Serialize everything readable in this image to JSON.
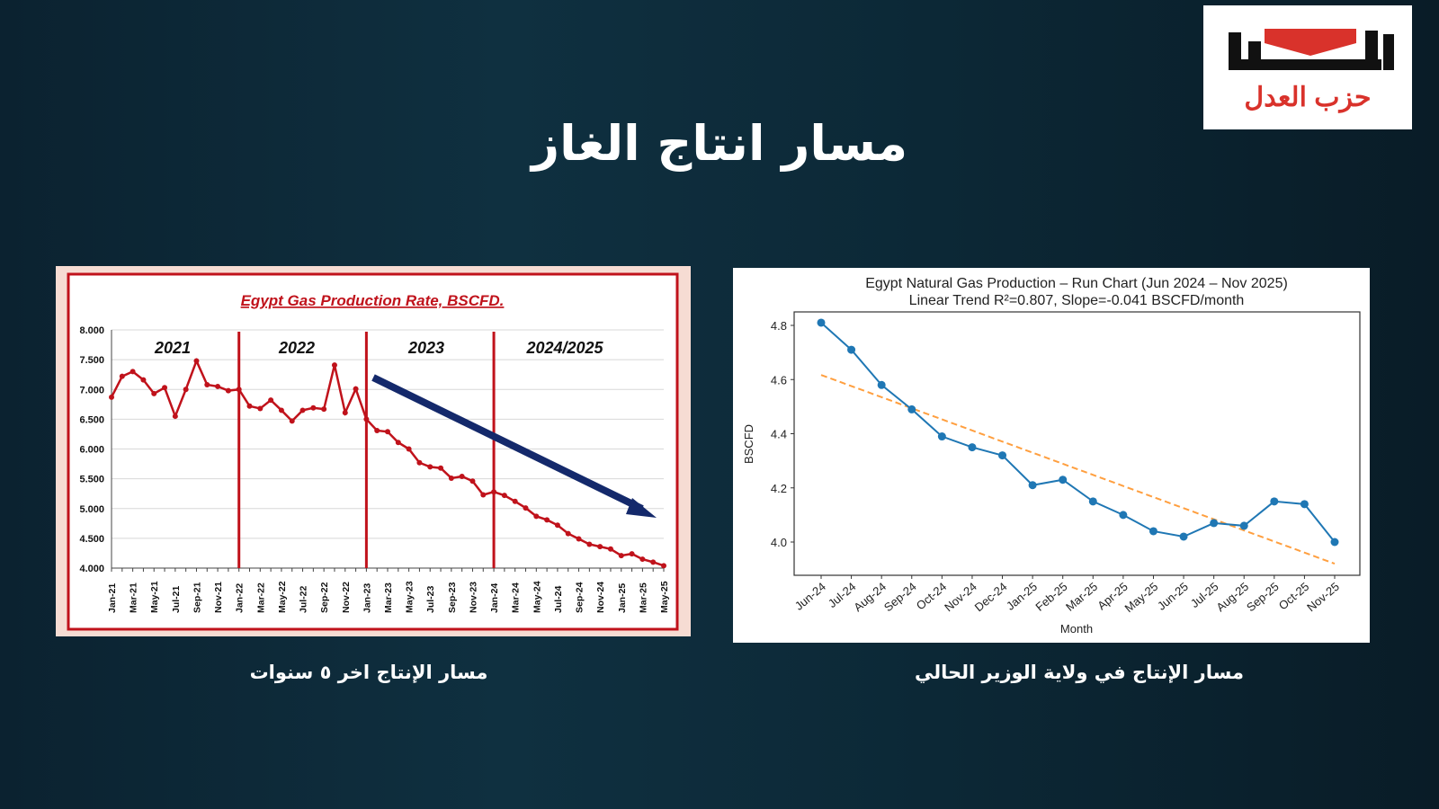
{
  "slide": {
    "title": "مسار انتاج الغاز",
    "caption_left": "مسار الإنتاج اخر ٥ سنوات",
    "caption_right": "مسار الإنتاج في ولاية الوزير الحالي"
  },
  "logo": {
    "text": "حزب العدل",
    "mark": "العدل",
    "colors": {
      "red": "#d9322b",
      "black": "#111111"
    }
  },
  "chart_data": [
    {
      "type": "line",
      "title": "Egypt Gas Production Rate, BSCFD.",
      "xlabel": "",
      "ylabel": "",
      "ylim": [
        4.0,
        8.0
      ],
      "yticks": [
        "4.000",
        "4.500",
        "5.000",
        "5.500",
        "6.000",
        "6.500",
        "7.000",
        "7.500",
        "8.000"
      ],
      "grid": true,
      "color": "#c0121b",
      "arrow_color": "#14296b",
      "period_labels": [
        "2021",
        "2022",
        "2023",
        "2024/2025"
      ],
      "period_dividers": [
        "Jan-22",
        "Jan-23",
        "Jan-24"
      ],
      "x": [
        "Jan-21",
        "Feb-21",
        "Mar-21",
        "Apr-21",
        "May-21",
        "Jun-21",
        "Jul-21",
        "Aug-21",
        "Sep-21",
        "Oct-21",
        "Nov-21",
        "Dec-21",
        "Jan-22",
        "Feb-22",
        "Mar-22",
        "Apr-22",
        "May-22",
        "Jun-22",
        "Jul-22",
        "Aug-22",
        "Sep-22",
        "Oct-22",
        "Nov-22",
        "Dec-22",
        "Jan-23",
        "Feb-23",
        "Mar-23",
        "Apr-23",
        "May-23",
        "Jun-23",
        "Jul-23",
        "Aug-23",
        "Sep-23",
        "Oct-23",
        "Nov-23",
        "Dec-23",
        "Jan-24",
        "Feb-24",
        "Mar-24",
        "Apr-24",
        "May-24",
        "Jun-24",
        "Jul-24",
        "Aug-24",
        "Sep-24",
        "Oct-24",
        "Nov-24",
        "Dec-24",
        "Jan-25",
        "Feb-25",
        "Mar-25",
        "Apr-25",
        "May-25"
      ],
      "values": [
        6.87,
        7.22,
        7.3,
        7.16,
        6.93,
        7.03,
        6.55,
        7.0,
        7.48,
        7.08,
        7.05,
        6.98,
        7.0,
        6.72,
        6.68,
        6.82,
        6.65,
        6.47,
        6.65,
        6.69,
        6.67,
        7.41,
        6.61,
        7.01,
        6.5,
        6.31,
        6.29,
        6.11,
        6.0,
        5.77,
        5.7,
        5.68,
        5.51,
        5.54,
        5.46,
        5.23,
        5.28,
        5.22,
        5.12,
        5.01,
        4.87,
        4.81,
        4.72,
        4.58,
        4.49,
        4.4,
        4.36,
        4.32,
        4.21,
        4.24,
        4.15,
        4.1,
        4.04
      ]
    },
    {
      "type": "line",
      "title": "Egypt Natural Gas Production – Run Chart (Jun 2024 – Nov 2025)",
      "subtitle": "Linear Trend R²=0.807, Slope=-0.041 BSCFD/month",
      "xlabel": "Month",
      "ylabel": "BSCFD",
      "ylim": [
        3.88,
        4.85
      ],
      "yticks": [
        "4.0",
        "4.2",
        "4.4",
        "4.6",
        "4.8"
      ],
      "grid": false,
      "color": "#1f77b4",
      "trend_color": "#ff9f3f",
      "x": [
        "Jun-24",
        "Jul-24",
        "Aug-24",
        "Sep-24",
        "Oct-24",
        "Nov-24",
        "Dec-24",
        "Jan-25",
        "Feb-25",
        "Mar-25",
        "Apr-25",
        "May-25",
        "Jun-25",
        "Jul-25",
        "Aug-25",
        "Sep-25",
        "Oct-25",
        "Nov-25"
      ],
      "values": [
        4.81,
        4.71,
        4.58,
        4.49,
        4.39,
        4.35,
        4.32,
        4.21,
        4.23,
        4.15,
        4.1,
        4.04,
        4.02,
        4.07,
        4.06,
        4.15,
        4.14,
        4.0
      ],
      "trend": [
        4.617,
        3.92
      ]
    }
  ]
}
